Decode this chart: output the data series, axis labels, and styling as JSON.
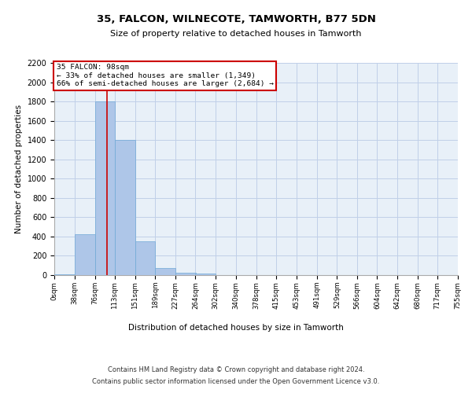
{
  "title": "35, FALCON, WILNECOTE, TAMWORTH, B77 5DN",
  "subtitle": "Size of property relative to detached houses in Tamworth",
  "xlabel": "Distribution of detached houses by size in Tamworth",
  "ylabel": "Number of detached properties",
  "bin_edges": [
    0,
    38,
    76,
    113,
    151,
    189,
    227,
    264,
    302,
    340,
    378,
    415,
    453,
    491,
    529,
    566,
    604,
    642,
    680,
    717,
    755
  ],
  "bar_heights": [
    5,
    420,
    1800,
    1400,
    350,
    75,
    25,
    20,
    0,
    0,
    0,
    0,
    0,
    0,
    0,
    0,
    0,
    0,
    0,
    0
  ],
  "bar_color": "#aec6e8",
  "bar_edgecolor": "#6fa8d6",
  "grid_color": "#c0d0e8",
  "background_color": "#e8f0f8",
  "vline_x": 98,
  "vline_color": "#cc0000",
  "annotation_text": "35 FALCON: 98sqm\n← 33% of detached houses are smaller (1,349)\n66% of semi-detached houses are larger (2,684) →",
  "annotation_box_color": "#cc0000",
  "ylim": [
    0,
    2200
  ],
  "yticks": [
    0,
    200,
    400,
    600,
    800,
    1000,
    1200,
    1400,
    1600,
    1800,
    2000,
    2200
  ],
  "xtick_labels": [
    "0sqm",
    "38sqm",
    "76sqm",
    "113sqm",
    "151sqm",
    "189sqm",
    "227sqm",
    "264sqm",
    "302sqm",
    "340sqm",
    "378sqm",
    "415sqm",
    "453sqm",
    "491sqm",
    "529sqm",
    "566sqm",
    "604sqm",
    "642sqm",
    "680sqm",
    "717sqm",
    "755sqm"
  ],
  "footer_line1": "Contains HM Land Registry data © Crown copyright and database right 2024.",
  "footer_line2": "Contains public sector information licensed under the Open Government Licence v3.0."
}
